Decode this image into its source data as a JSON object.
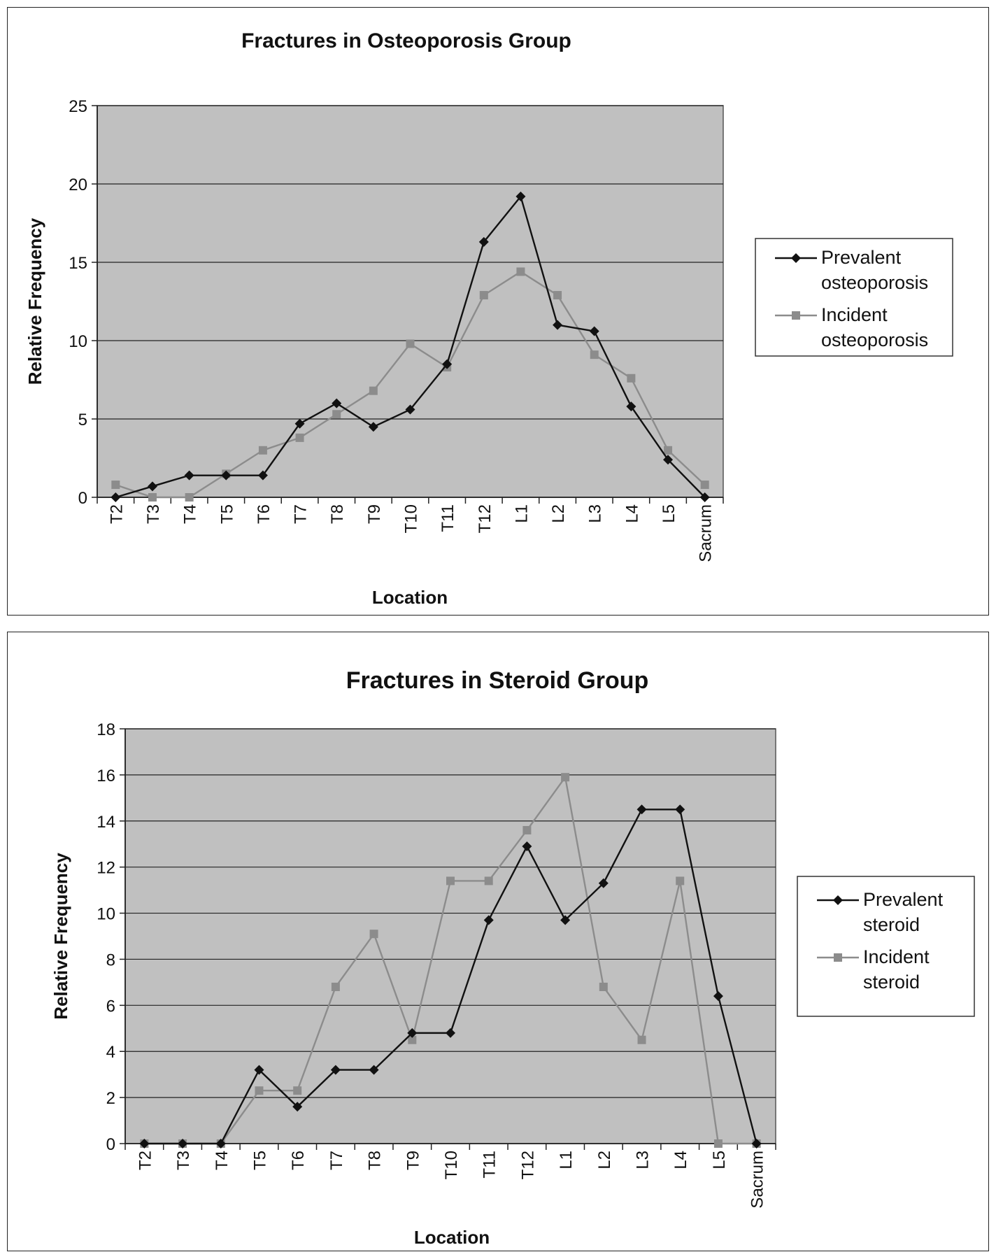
{
  "chart_data": [
    {
      "type": "line",
      "title": "Fractures in Osteoporosis Group",
      "xlabel": "Location",
      "ylabel": "Relative Frequency",
      "ylim": [
        0,
        25
      ],
      "yticks": [
        "0",
        "5",
        "10",
        "15",
        "20",
        "25"
      ],
      "categories": [
        "T2",
        "T3",
        "T4",
        "T5",
        "T6",
        "T7",
        "T8",
        "T9",
        "T10",
        "T11",
        "T12",
        "L1",
        "L2",
        "L3",
        "L4",
        "L5",
        "Sacrum"
      ],
      "grid": true,
      "legend_position": "right",
      "series": [
        {
          "name": "Prevalent osteoporosis",
          "legend_lines": [
            "Prevalent",
            "osteoporosis"
          ],
          "marker": "diamond",
          "color": "#111111",
          "values": [
            0,
            0.7,
            1.4,
            1.4,
            1.4,
            4.7,
            6.0,
            4.5,
            5.6,
            8.5,
            16.3,
            19.2,
            11.0,
            10.6,
            5.8,
            2.4,
            0
          ]
        },
        {
          "name": "Incident osteoporosis",
          "legend_lines": [
            "Incident",
            "osteoporosis"
          ],
          "marker": "square",
          "color": "#8c8c8c",
          "values": [
            0.8,
            0,
            0,
            1.5,
            3.0,
            3.8,
            5.3,
            6.8,
            9.8,
            8.3,
            12.9,
            14.4,
            12.9,
            9.1,
            7.6,
            3.0,
            0.8
          ]
        }
      ]
    },
    {
      "type": "line",
      "title": "Fractures in Steroid Group",
      "xlabel": "Location",
      "ylabel": "Relative Frequency",
      "ylim": [
        0,
        18
      ],
      "yticks": [
        "0",
        "2",
        "4",
        "6",
        "8",
        "10",
        "12",
        "14",
        "16",
        "18"
      ],
      "categories": [
        "T2",
        "T3",
        "T4",
        "T5",
        "T6",
        "T7",
        "T8",
        "T9",
        "T10",
        "T11",
        "T12",
        "L1",
        "L2",
        "L3",
        "L4",
        "L5",
        "Sacrum"
      ],
      "grid": true,
      "legend_position": "right",
      "series": [
        {
          "name": "Prevalent steroid",
          "legend_lines": [
            "Prevalent",
            "steroid"
          ],
          "marker": "diamond",
          "color": "#111111",
          "values": [
            0,
            0,
            0,
            3.2,
            1.6,
            3.2,
            3.2,
            4.8,
            4.8,
            9.7,
            12.9,
            9.7,
            11.3,
            14.5,
            14.5,
            6.4,
            0
          ]
        },
        {
          "name": "Incident steroid",
          "legend_lines": [
            "Incident",
            "steroid"
          ],
          "marker": "square",
          "color": "#8c8c8c",
          "values": [
            0,
            0,
            0,
            2.3,
            2.3,
            6.8,
            9.1,
            4.5,
            11.4,
            11.4,
            13.6,
            15.9,
            6.8,
            4.5,
            11.4,
            0,
            0
          ]
        }
      ]
    }
  ]
}
